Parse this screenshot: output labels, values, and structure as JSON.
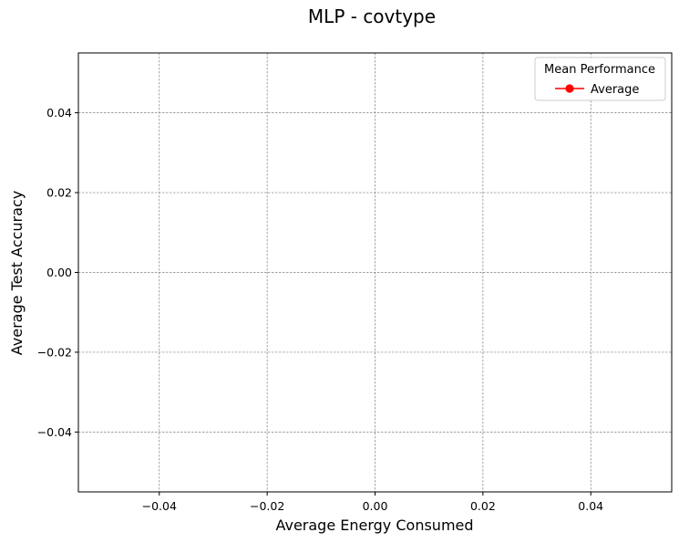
{
  "chart_data": {
    "type": "line",
    "title": "MLP - covtype",
    "xlabel": "Average Energy Consumed",
    "ylabel": "Average Test Accuracy",
    "xlim": [
      -0.055,
      0.055
    ],
    "ylim": [
      -0.055,
      0.055
    ],
    "xticks": [
      -0.04,
      -0.02,
      0.0,
      0.02,
      0.04
    ],
    "yticks": [
      -0.04,
      -0.02,
      0.0,
      0.02,
      0.04
    ],
    "xtick_labels": [
      "−0.04",
      "−0.02",
      "0.00",
      "0.02",
      "0.04"
    ],
    "ytick_labels": [
      "−0.04",
      "−0.02",
      "0.00",
      "0.02",
      "0.04"
    ],
    "grid": true,
    "legend": {
      "title": "Mean Performance",
      "placement": "top-right",
      "entries": [
        {
          "label": "Average",
          "color": "#ff0000",
          "marker": "circle"
        }
      ]
    },
    "series": [
      {
        "name": "Average",
        "color": "#ff0000",
        "x": [],
        "y": []
      }
    ]
  }
}
